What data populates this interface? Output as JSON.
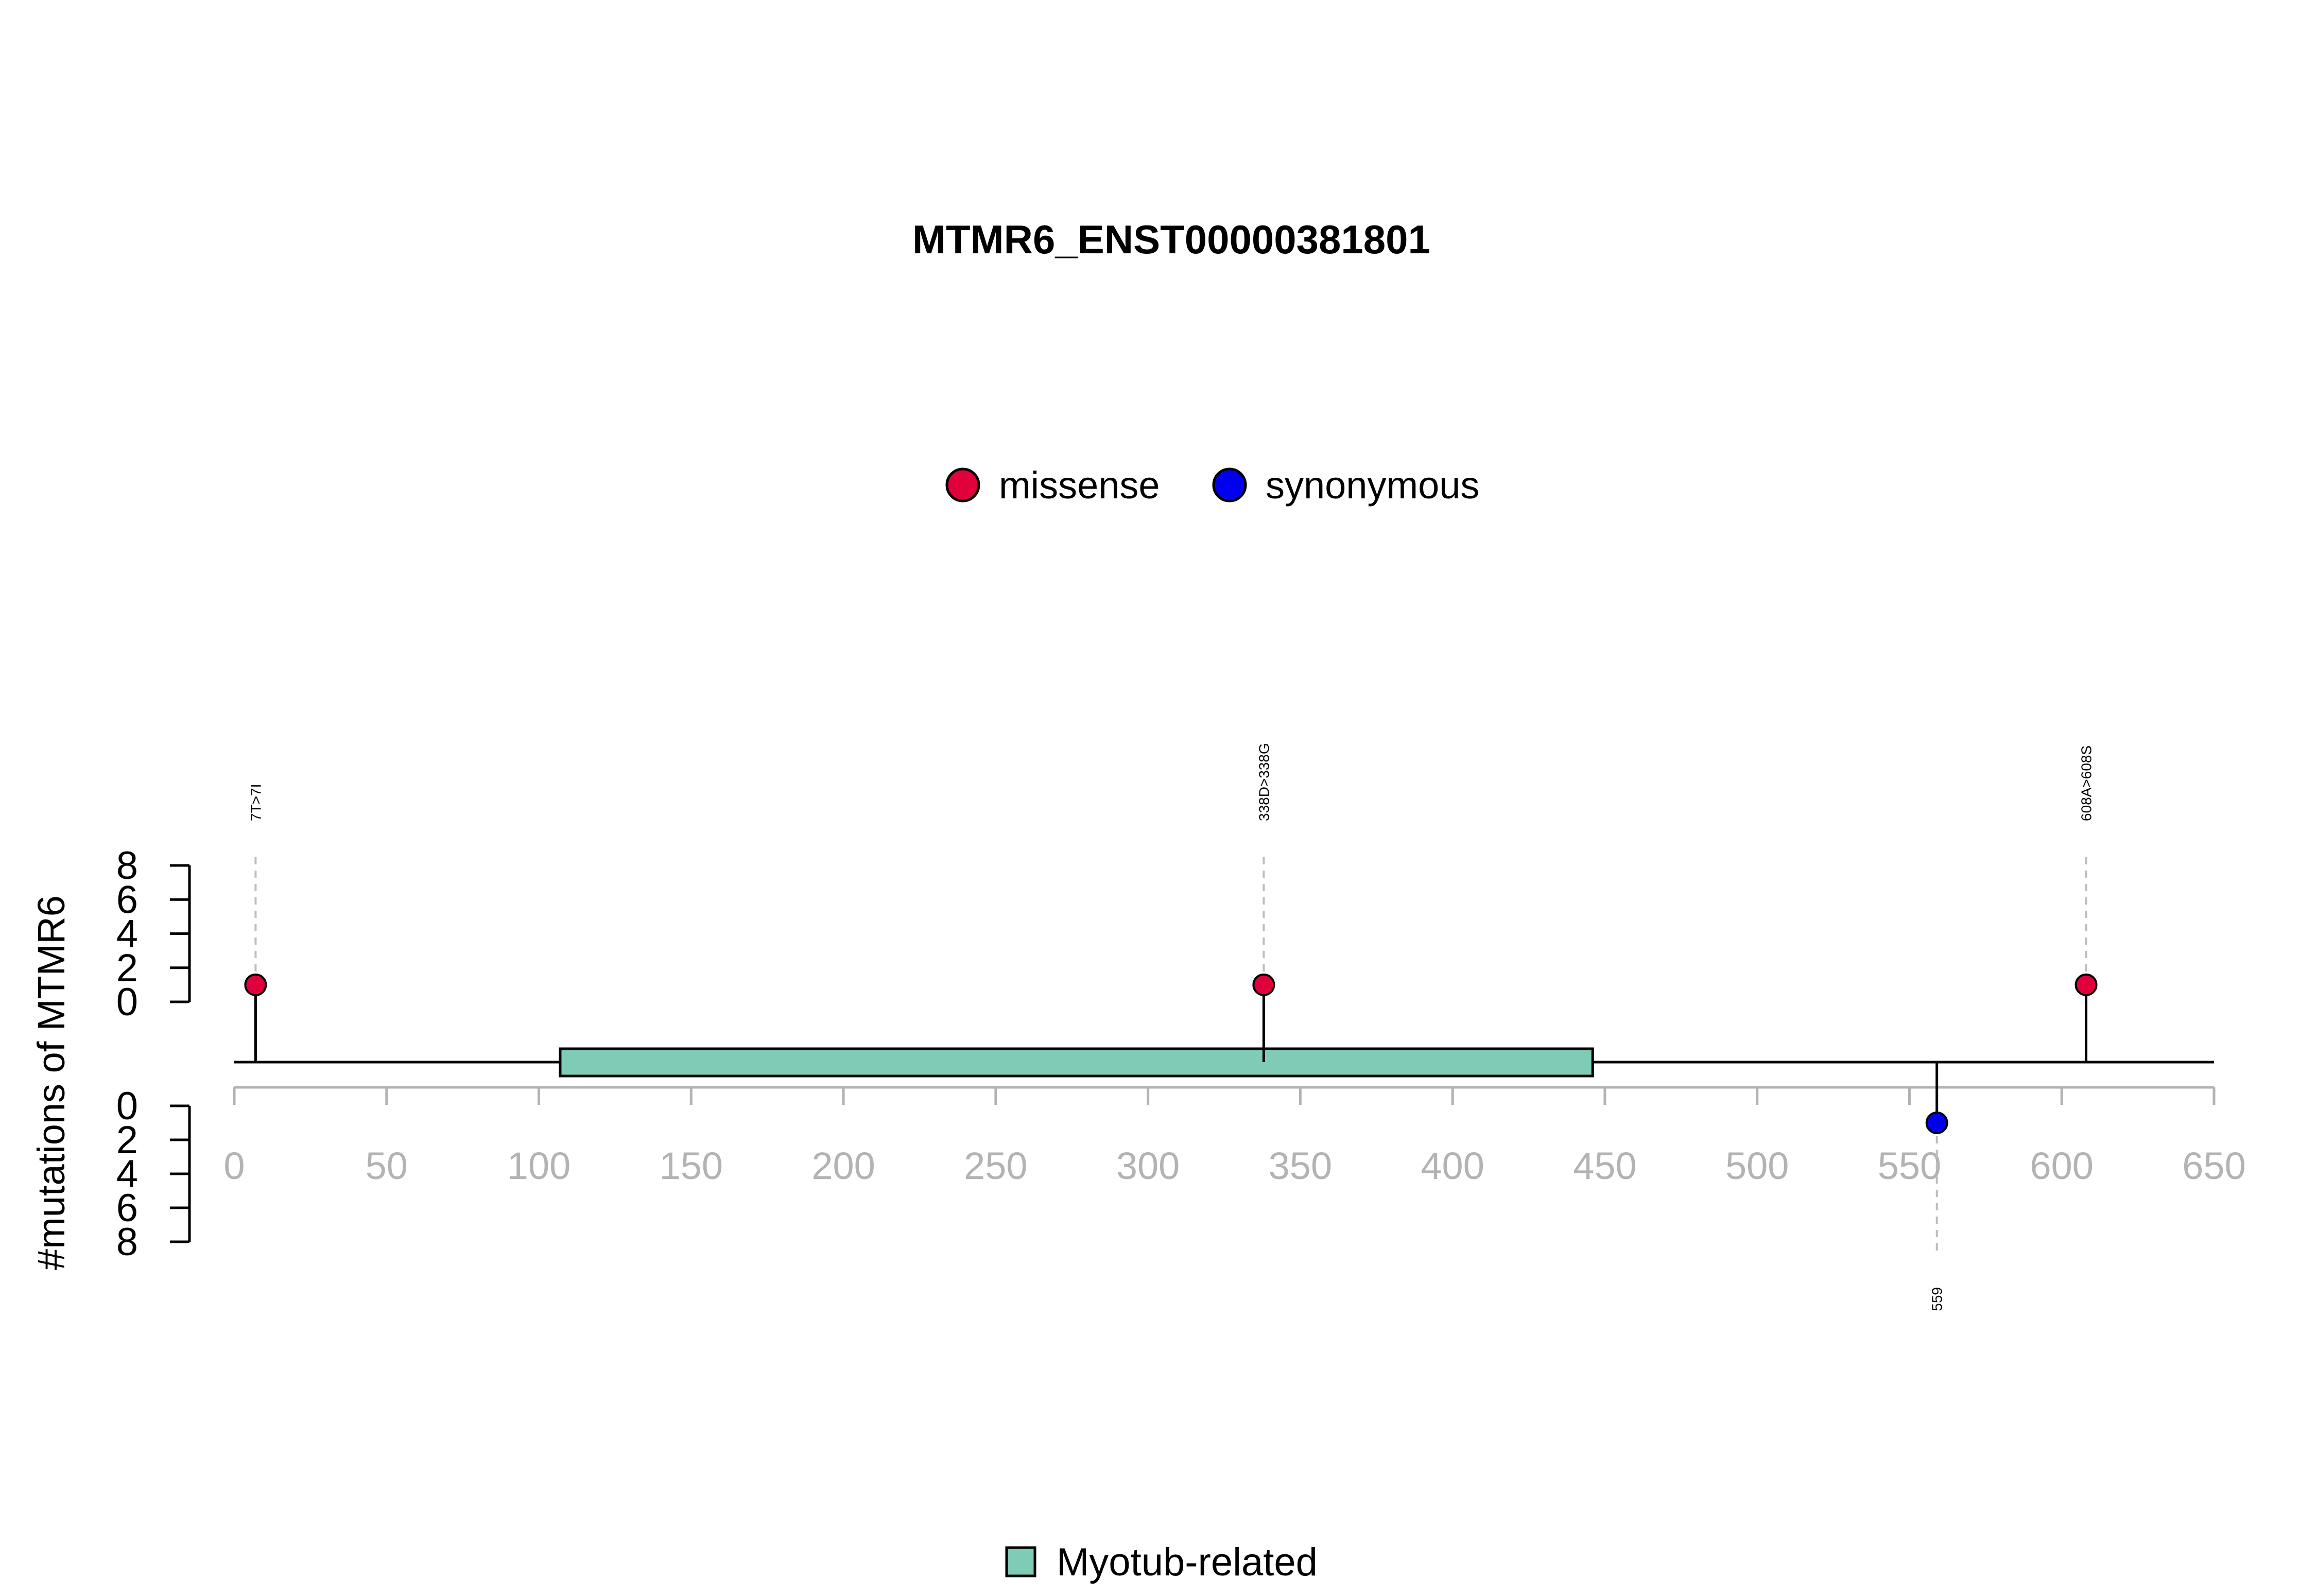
{
  "chart_data": {
    "type": "lollipop",
    "title": "MTMR6_ENST00000381801",
    "ylabel": "#mutations of MTMR6",
    "xlim": [
      0,
      650
    ],
    "x_ticks": [
      0,
      50,
      100,
      150,
      200,
      250,
      300,
      350,
      400,
      450,
      500,
      550,
      600,
      650
    ],
    "ylim": [
      0,
      8
    ],
    "y_ticks": [
      0,
      2,
      4,
      6,
      8
    ],
    "legend": [
      {
        "name": "missense",
        "color": "#e0003c"
      },
      {
        "name": "synonymous",
        "color": "#0000ee"
      }
    ],
    "domain_legend": [
      {
        "name": "Myotub-related",
        "color": "#7fcbb5"
      }
    ],
    "domains": [
      {
        "name": "Myotub-related",
        "start": 107,
        "end": 446,
        "color": "#7fcbb5"
      }
    ],
    "mutations": [
      {
        "position": 7,
        "label": "7T>7I",
        "type": "missense",
        "count": 1,
        "strand": "top"
      },
      {
        "position": 338,
        "label": "338D>338G",
        "type": "missense",
        "count": 1,
        "strand": "top"
      },
      {
        "position": 608,
        "label": "608A>608S",
        "type": "missense",
        "count": 1,
        "strand": "top"
      },
      {
        "position": 559,
        "label": "559",
        "type": "synonymous",
        "count": 1,
        "strand": "bottom"
      }
    ]
  }
}
